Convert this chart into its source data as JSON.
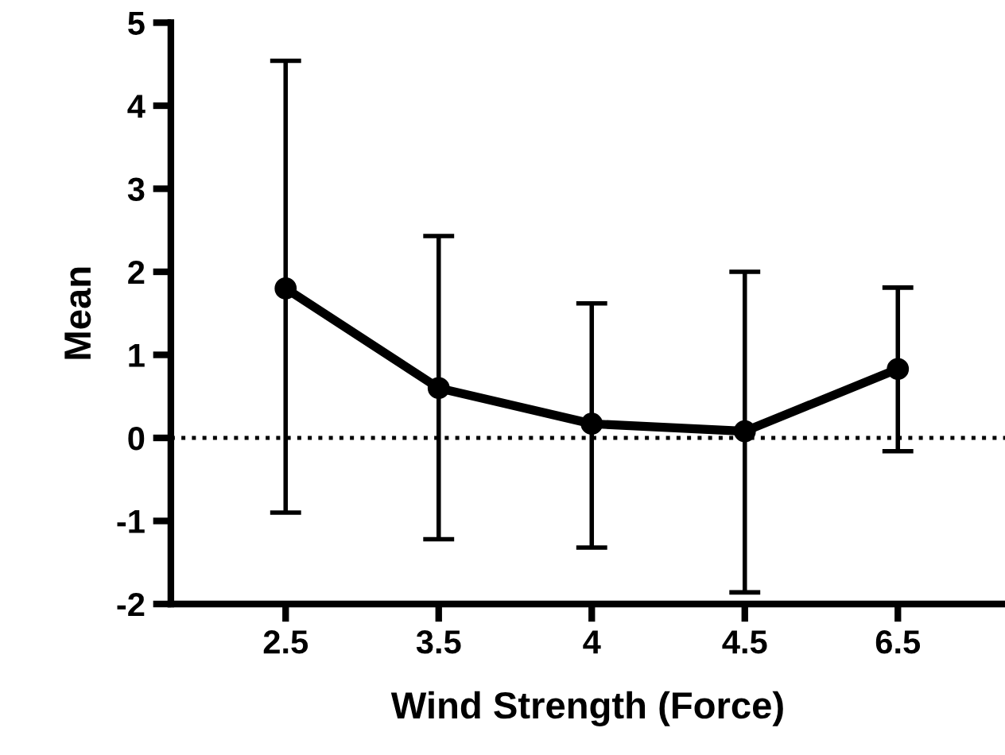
{
  "chart_data": {
    "type": "line",
    "xlabel": "Wind Strength (Force)",
    "ylabel": "Mean",
    "categories": [
      "2.5",
      "3.5",
      "4",
      "4.5",
      "6.5"
    ],
    "values": [
      1.8,
      0.6,
      0.17,
      0.08,
      0.83
    ],
    "errors": [
      [
        -0.9,
        4.54
      ],
      [
        -1.22,
        2.43
      ],
      [
        -1.32,
        1.62
      ],
      [
        -1.86,
        2.0
      ],
      [
        -0.16,
        1.81
      ]
    ],
    "color": "#000000",
    "marker": "circle",
    "line_style": "solid",
    "ylim": [
      -2,
      5
    ],
    "yticks": [
      -2,
      -1,
      0,
      1,
      2,
      3,
      4,
      5
    ],
    "grid": false,
    "ref_lines": [
      {
        "axis": "y",
        "value": 0,
        "line_style": "dotted",
        "color": "#000000"
      }
    ]
  }
}
